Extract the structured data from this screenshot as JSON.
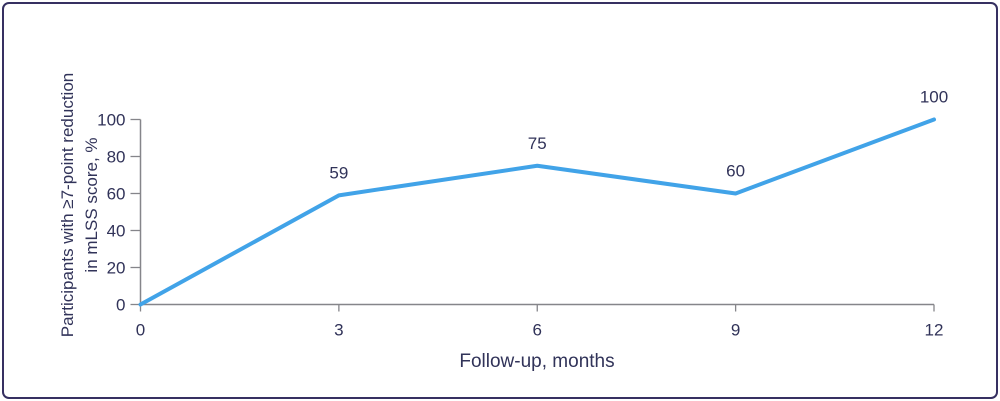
{
  "frame": {
    "border_color": "#363061",
    "background_color": "#ffffff"
  },
  "chart_data": {
    "type": "line",
    "x": [
      0,
      3,
      6,
      9,
      12
    ],
    "values": [
      0,
      59,
      75,
      60,
      100
    ],
    "point_labels": [
      "",
      "59",
      "75",
      "60",
      "100"
    ],
    "xticks": [
      0,
      3,
      6,
      9,
      12
    ],
    "yticks": [
      0,
      20,
      40,
      60,
      80,
      100
    ],
    "xlim": [
      0,
      12
    ],
    "ylim": [
      0,
      100
    ],
    "title": "",
    "xlabel": "Follow-up, months",
    "ylabel_line1": "Participants with ≥7-point reduction",
    "ylabel_line2": "in mLSS score, %",
    "grid": false,
    "legend": "none",
    "line_color": "#41a3e8",
    "axis_color": "#85858a",
    "text_color": "#313359"
  }
}
